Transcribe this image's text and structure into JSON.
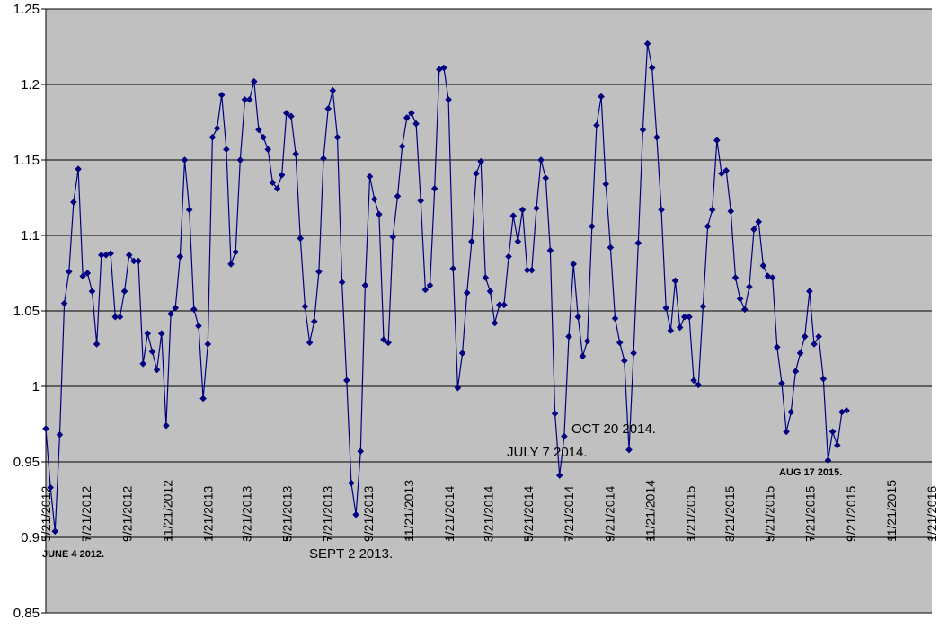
{
  "chart_data": {
    "type": "line",
    "title": "",
    "xlabel": "",
    "ylabel": "",
    "ylim": [
      0.85,
      1.25
    ],
    "xlim": [
      "2012-05-21",
      "2016-01-21"
    ],
    "y_ticks": [
      "0.85",
      "0.9",
      "0.95",
      "1",
      "1.05",
      "1.1",
      "1.15",
      "1.2",
      "1.25"
    ],
    "x_tick_labels": [
      "5/21/2012",
      "7/21/2012",
      "9/21/2012",
      "11/21/2012",
      "1/21/2013",
      "3/21/2013",
      "5/21/2013",
      "7/21/2013",
      "9/21/2013",
      "11/21/2013",
      "1/21/2014",
      "3/21/2014",
      "5/21/2014",
      "7/21/2014",
      "9/21/2014",
      "11/21/2014",
      "1/21/2015",
      "3/21/2015",
      "5/21/2015",
      "7/21/2015",
      "9/21/2015",
      "11/21/2015",
      "1/21/2016"
    ],
    "x_tick_dates": [
      "2012-05-21",
      "2012-07-21",
      "2012-09-21",
      "2012-11-21",
      "2013-01-21",
      "2013-03-21",
      "2013-05-21",
      "2013-07-21",
      "2013-09-21",
      "2013-11-21",
      "2014-01-21",
      "2014-03-21",
      "2014-05-21",
      "2014-07-21",
      "2014-09-21",
      "2014-11-21",
      "2015-01-21",
      "2015-03-21",
      "2015-05-21",
      "2015-07-21",
      "2015-09-21",
      "2015-11-21",
      "2016-01-21"
    ],
    "grid": "horizontal",
    "legend": "none",
    "colors": {
      "plot_bg": "#c0c0c0",
      "series": "#000080",
      "gridline": "#000000"
    },
    "series": [
      {
        "x": [
          "2012-05-21",
          "2012-05-28",
          "2012-06-04",
          "2012-06-11",
          "2012-06-18",
          "2012-06-25",
          "2012-07-02",
          "2012-07-09",
          "2012-07-16",
          "2012-07-23",
          "2012-07-30",
          "2012-08-06",
          "2012-08-13",
          "2012-08-20",
          "2012-08-27",
          "2012-09-03",
          "2012-09-10",
          "2012-09-17",
          "2012-09-24",
          "2012-10-01",
          "2012-10-08",
          "2012-10-15",
          "2012-10-22",
          "2012-10-29",
          "2012-11-05",
          "2012-11-12",
          "2012-11-19",
          "2012-11-26",
          "2012-12-03",
          "2012-12-10",
          "2012-12-17",
          "2012-12-24",
          "2012-12-31",
          "2013-01-07",
          "2013-01-14",
          "2013-01-21",
          "2013-01-28",
          "2013-02-04",
          "2013-02-11",
          "2013-02-18",
          "2013-02-25",
          "2013-03-04",
          "2013-03-11",
          "2013-03-18",
          "2013-03-25",
          "2013-04-01",
          "2013-04-08",
          "2013-04-15",
          "2013-04-22",
          "2013-04-29",
          "2013-05-06",
          "2013-05-13",
          "2013-05-20",
          "2013-05-27",
          "2013-06-03",
          "2013-06-10",
          "2013-06-17",
          "2013-06-24",
          "2013-07-01",
          "2013-07-08",
          "2013-07-15",
          "2013-07-22",
          "2013-07-29",
          "2013-08-05",
          "2013-08-12",
          "2013-08-19",
          "2013-08-26",
          "2013-09-02",
          "2013-09-09",
          "2013-09-16",
          "2013-09-23",
          "2013-09-30",
          "2013-10-07",
          "2013-10-14",
          "2013-10-21",
          "2013-10-28",
          "2013-11-04",
          "2013-11-11",
          "2013-11-18",
          "2013-11-25",
          "2013-12-02",
          "2013-12-09",
          "2013-12-16",
          "2013-12-23",
          "2013-12-30",
          "2014-01-06",
          "2014-01-13",
          "2014-01-20",
          "2014-01-27",
          "2014-02-03",
          "2014-02-10",
          "2014-02-17",
          "2014-02-24",
          "2014-03-03",
          "2014-03-10",
          "2014-03-17",
          "2014-03-24",
          "2014-03-31",
          "2014-04-07",
          "2014-04-14",
          "2014-04-21",
          "2014-04-28",
          "2014-05-05",
          "2014-05-12",
          "2014-05-19",
          "2014-05-26",
          "2014-06-02",
          "2014-06-09",
          "2014-06-16",
          "2014-06-23",
          "2014-06-30",
          "2014-07-07",
          "2014-07-14",
          "2014-07-21",
          "2014-07-28",
          "2014-08-04",
          "2014-08-11",
          "2014-08-18",
          "2014-08-25",
          "2014-09-01",
          "2014-09-08",
          "2014-09-15",
          "2014-09-22",
          "2014-09-29",
          "2014-10-06",
          "2014-10-13",
          "2014-10-20",
          "2014-10-27",
          "2014-11-03",
          "2014-11-10",
          "2014-11-17",
          "2014-11-24",
          "2014-12-01",
          "2014-12-08",
          "2014-12-15",
          "2014-12-22",
          "2014-12-29",
          "2015-01-05",
          "2015-01-12",
          "2015-01-19",
          "2015-01-26",
          "2015-02-02",
          "2015-02-09",
          "2015-02-16",
          "2015-02-23",
          "2015-03-02",
          "2015-03-09",
          "2015-03-16",
          "2015-03-23",
          "2015-03-30",
          "2015-04-06",
          "2015-04-13",
          "2015-04-20",
          "2015-04-27",
          "2015-05-04",
          "2015-05-11",
          "2015-05-18",
          "2015-05-25",
          "2015-06-01",
          "2015-06-08",
          "2015-06-15",
          "2015-06-22",
          "2015-06-29",
          "2015-07-06",
          "2015-07-13",
          "2015-07-20",
          "2015-07-27",
          "2015-08-03",
          "2015-08-10",
          "2015-08-17",
          "2015-08-24",
          "2015-08-31",
          "2015-09-07",
          "2015-09-14"
        ],
        "y": [
          0.972,
          0.933,
          0.904,
          0.968,
          1.055,
          1.076,
          1.122,
          1.144,
          1.073,
          1.075,
          1.063,
          1.028,
          1.087,
          1.087,
          1.088,
          1.046,
          1.046,
          1.063,
          1.087,
          1.083,
          1.083,
          1.015,
          1.035,
          1.023,
          1.011,
          1.035,
          0.974,
          1.048,
          1.052,
          1.086,
          1.15,
          1.117,
          1.051,
          1.04,
          0.992,
          1.028,
          1.165,
          1.171,
          1.193,
          1.157,
          1.081,
          1.089,
          1.15,
          1.19,
          1.19,
          1.202,
          1.17,
          1.165,
          1.157,
          1.135,
          1.131,
          1.14,
          1.181,
          1.179,
          1.154,
          1.098,
          1.053,
          1.029,
          1.043,
          1.076,
          1.151,
          1.184,
          1.196,
          1.165,
          1.069,
          1.004,
          0.936,
          0.915,
          0.957,
          1.067,
          1.139,
          1.124,
          1.114,
          1.031,
          1.029,
          1.099,
          1.126,
          1.159,
          1.178,
          1.181,
          1.174,
          1.123,
          1.064,
          1.067,
          1.131,
          1.21,
          1.211,
          1.19,
          1.078,
          0.999,
          1.022,
          1.062,
          1.096,
          1.141,
          1.149,
          1.072,
          1.063,
          1.042,
          1.054,
          1.054,
          1.086,
          1.113,
          1.096,
          1.117,
          1.077,
          1.077,
          1.118,
          1.15,
          1.138,
          1.09,
          0.982,
          0.941,
          0.967,
          1.033,
          1.081,
          1.046,
          1.02,
          1.03,
          1.106,
          1.173,
          1.192,
          1.134,
          1.092,
          1.045,
          1.029,
          1.017,
          0.958,
          1.022,
          1.095,
          1.17,
          1.227,
          1.211,
          1.165,
          1.117,
          1.052,
          1.037,
          1.07,
          1.039,
          1.046,
          1.046,
          1.004,
          1.001,
          1.053,
          1.106,
          1.117,
          1.163,
          1.141,
          1.143,
          1.116,
          1.072,
          1.058,
          1.051,
          1.066,
          1.104,
          1.109,
          1.08,
          1.073,
          1.072,
          1.026,
          1.002,
          0.97,
          0.983,
          1.01,
          1.022,
          1.033,
          1.063,
          1.028,
          1.033,
          1.005,
          0.951,
          0.97,
          0.961,
          0.983,
          0.984
        ]
      }
    ],
    "annotations": [
      {
        "text": "JUNE 4 2012.",
        "style": "small-bold"
      },
      {
        "text": "SEPT 2 2013.",
        "style": "normal"
      },
      {
        "text": "JULY 7 2014.",
        "style": "normal"
      },
      {
        "text": "OCT 20 2014.",
        "style": "normal"
      },
      {
        "text": "AUG 17 2015.",
        "style": "small-bold"
      }
    ]
  }
}
